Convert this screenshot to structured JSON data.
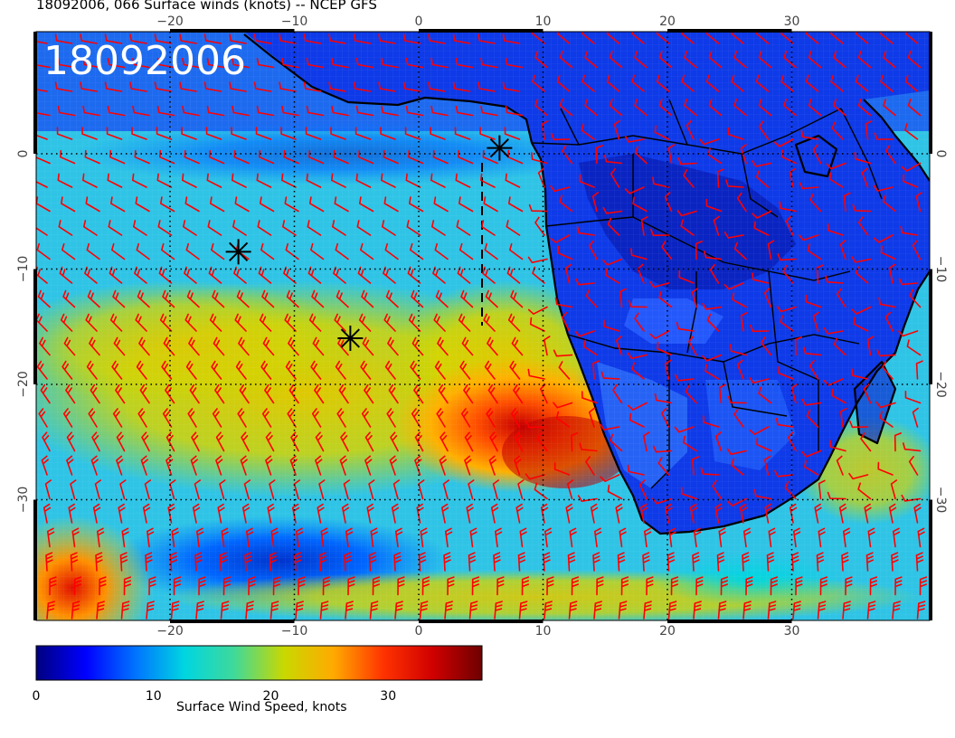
{
  "title": "18092006, 066 Surface winds (knots) -- NCEP GFS",
  "stamp": "18092006",
  "lon_ticks": [
    "−20",
    "−10",
    "0",
    "10",
    "20",
    "30"
  ],
  "lat_ticks": [
    "0",
    "−10",
    "−20",
    "−30"
  ],
  "colorbar": {
    "label": "Surface Wind Speed, knots",
    "ticks": [
      "0",
      "10",
      "20",
      "30"
    ],
    "min": 0,
    "max": 38,
    "stops": [
      "#00007f",
      "#0000ff",
      "#0073ff",
      "#00d6e0",
      "#3fd99a",
      "#c9d800",
      "#ffaa00",
      "#ff3300",
      "#d00000",
      "#6e0000"
    ]
  },
  "markers": [
    {
      "name": "marker-1",
      "lon": 6.5,
      "lat": 0.5
    },
    {
      "name": "marker-2",
      "lon": -14.5,
      "lat": -8.5
    },
    {
      "name": "marker-3",
      "lon": -5.5,
      "lat": -16
    }
  ],
  "colors": {
    "barb": "#ff0000",
    "grid": "#000000",
    "coast": "#000000"
  },
  "icons": {
    "marker": "asterisk-marker-icon",
    "barb": "wind-barb-icon"
  }
}
